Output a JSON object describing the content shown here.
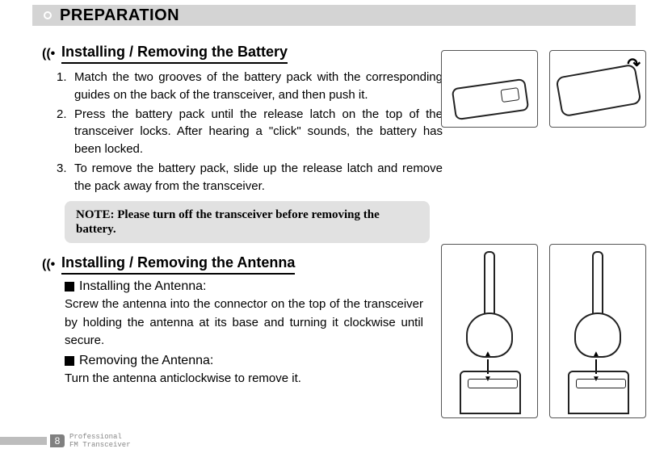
{
  "header": {
    "title": "PREPARATION"
  },
  "section1": {
    "heading": "Installing / Removing the Battery",
    "steps": [
      {
        "n": "1.",
        "t": "Match the two grooves of the battery pack with the corresponding guides on the back of the transceiver, and then push it."
      },
      {
        "n": "2.",
        "t": "Press the battery pack until the release latch on the top of the transceiver locks. After hearing a \"click\" sounds, the battery has been locked."
      },
      {
        "n": "3.",
        "t": "To remove the battery pack, slide up the release latch and remove the pack away from the transceiver."
      }
    ]
  },
  "note": {
    "label": "NOTE: ",
    "text": "Please turn off the transceiver before removing the battery."
  },
  "section2": {
    "heading": "Installing / Removing the Antenna",
    "install_title": "Installing the Antenna:",
    "install_text": "Screw the antenna into the connector on the top of the transceiver by holding the antenna at its base and turning it clockwise until secure.",
    "remove_title": "Removing the Antenna:",
    "remove_text": "Turn the antenna anticlockwise to remove it."
  },
  "footer": {
    "page": "8",
    "line1": "Professional",
    "line2": "FM Transceiver"
  },
  "colors": {
    "header_bg": "#d4d4d4",
    "note_bg": "#e1e1e1",
    "foot_bar": "#bdbdbd",
    "page_badge": "#808080"
  }
}
